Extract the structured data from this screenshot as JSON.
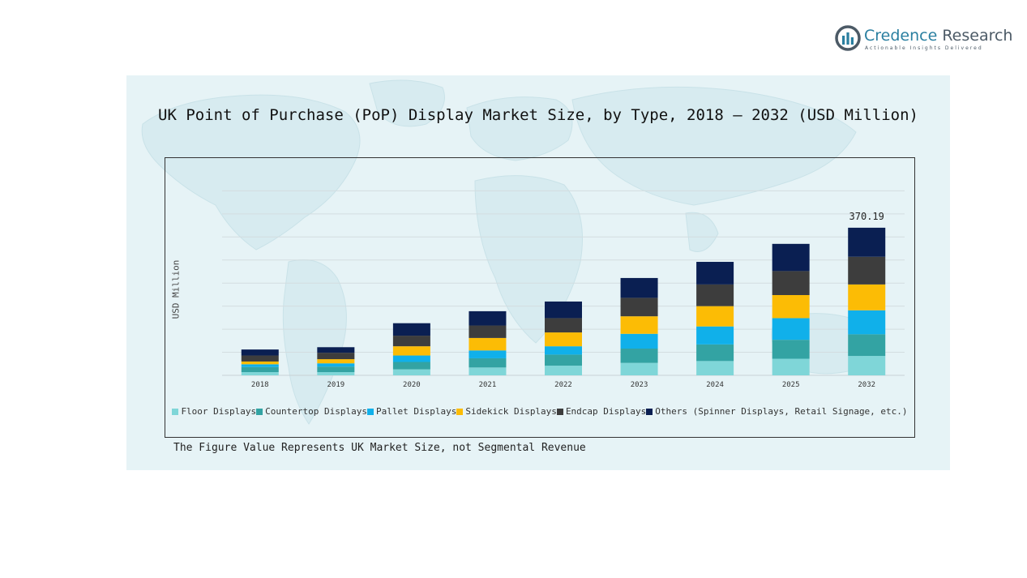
{
  "logo": {
    "name_first": "Credence",
    "name_second": " Research",
    "tagline": "Actionable Insights Delivered",
    "mark_colors": [
      "#2a7fa0",
      "#4c5a66"
    ]
  },
  "footnote": "The Figure Value Represents UK Market Size, not Segmental Revenue",
  "chart_data": {
    "type": "bar",
    "stacked": true,
    "title": "UK Point of Purchase (PoP) Display Market Size, by Type, 2018 – 2032 (USD Million)",
    "ylabel": "USD Million",
    "xlabel": "",
    "categories": [
      "2018",
      "2019",
      "2020",
      "2021",
      "2022",
      "2023",
      "2024",
      "2025",
      "2032"
    ],
    "ylim": [
      0,
      420
    ],
    "grid": true,
    "legend_position": "bottom",
    "annotation": {
      "category": "2032",
      "text": "370.19"
    },
    "series": [
      {
        "name": "Floor Displays",
        "color": "#7fd6d8",
        "values": [
          7,
          7,
          13,
          17,
          21,
          27,
          31,
          36,
          42
        ]
      },
      {
        "name": "Countertop Displays",
        "color": "#33a3a3",
        "values": [
          11,
          12,
          16,
          20,
          24,
          31,
          36,
          41,
          47
        ]
      },
      {
        "name": "Pallet Displays",
        "color": "#10b0ea",
        "values": [
          6,
          7,
          14,
          17,
          18,
          32,
          39,
          47,
          52
        ]
      },
      {
        "name": "Sidekick Displays",
        "color": "#fcbc05",
        "values": [
          6,
          9,
          20,
          27,
          30,
          38,
          44,
          50,
          56
        ]
      },
      {
        "name": "Endcap Displays",
        "color": "#3d3d3d",
        "values": [
          13,
          14,
          23,
          27,
          31,
          40,
          47,
          52,
          60
        ]
      },
      {
        "name": "Others (Spinner Displays, Retail Signage, etc.)",
        "color": "#0a1f52",
        "values": [
          13,
          12,
          27,
          31,
          36,
          43,
          49,
          59,
          63
        ]
      }
    ]
  }
}
